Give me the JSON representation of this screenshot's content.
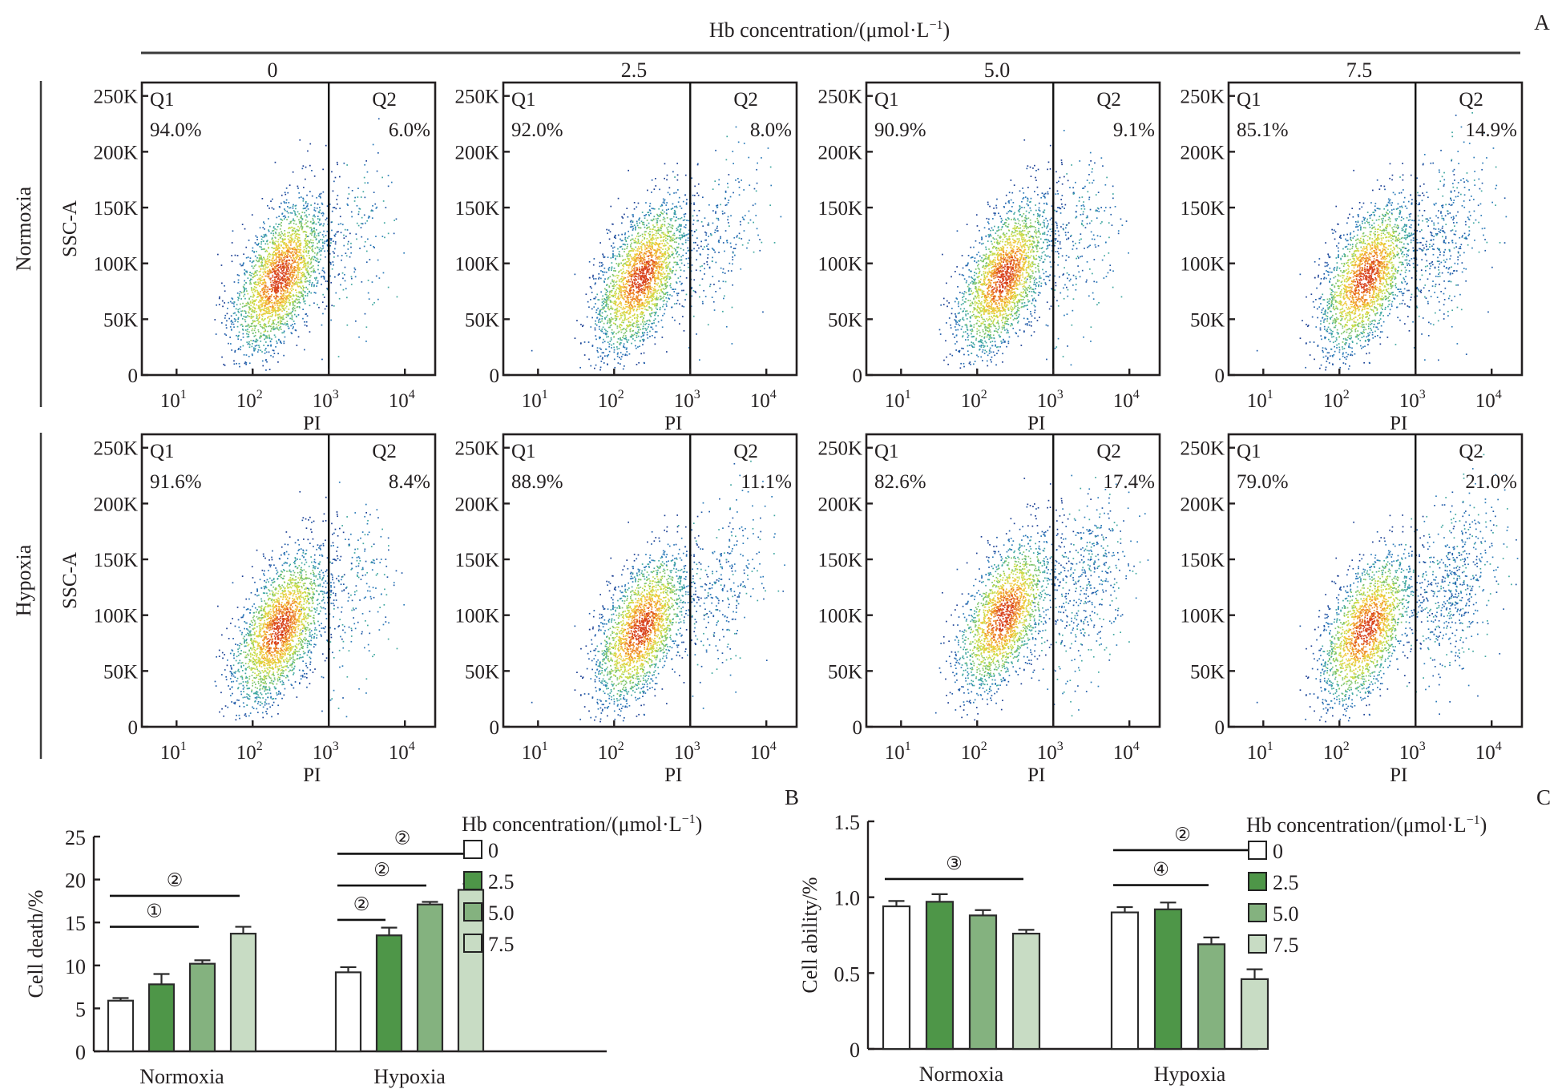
{
  "figure": {
    "panel_labels": {
      "A": "A",
      "B": "B",
      "C": "C"
    },
    "header": {
      "title": "Hb concentration/(μmol·L",
      "title_sup": "−1",
      "title_close": ")",
      "columns": [
        "0",
        "2.5",
        "5.0",
        "7.5"
      ]
    },
    "rows": [
      "Normoxia",
      "Hypoxia"
    ]
  },
  "chart_data": [
    {
      "type": "scatter",
      "title": "Flow cytometry PI vs SSC-A",
      "xlabel": "PI",
      "ylabel": "SSC-A",
      "x_scale": "log",
      "xlim": [
        3.5,
        25000
      ],
      "x_ticks": [
        {
          "value": 10,
          "base": "10",
          "exp": "1"
        },
        {
          "value": 100,
          "base": "10",
          "exp": "2"
        },
        {
          "value": 1000,
          "base": "10",
          "exp": "3"
        },
        {
          "value": 10000,
          "base": "10",
          "exp": "4"
        }
      ],
      "ylim": [
        0,
        262000
      ],
      "y_ticks": [
        {
          "value": 0,
          "label": "0"
        },
        {
          "value": 50000,
          "label": "50K"
        },
        {
          "value": 100000,
          "label": "100K"
        },
        {
          "value": 150000,
          "label": "150K"
        },
        {
          "value": 200000,
          "label": "200K"
        },
        {
          "value": 250000,
          "label": "250K"
        }
      ],
      "gate_x": 1000,
      "gate_labels": [
        "Q1",
        "Q2"
      ],
      "panels": [
        {
          "row": "Normoxia",
          "hb": "0",
          "q1": "94.0%",
          "q2": "6.0%",
          "q1_value": 94.0,
          "q2_value": 6.0
        },
        {
          "row": "Normoxia",
          "hb": "2.5",
          "q1": "92.0%",
          "q2": "8.0%",
          "q1_value": 92.0,
          "q2_value": 8.0
        },
        {
          "row": "Normoxia",
          "hb": "5.0",
          "q1": "90.9%",
          "q2": "9.1%",
          "q1_value": 90.9,
          "q2_value": 9.1
        },
        {
          "row": "Normoxia",
          "hb": "7.5",
          "q1": "85.1%",
          "q2": "14.9%",
          "q1_value": 85.1,
          "q2_value": 14.9
        },
        {
          "row": "Hypoxia",
          "hb": "0",
          "q1": "91.6%",
          "q2": "8.4%",
          "q1_value": 91.6,
          "q2_value": 8.4
        },
        {
          "row": "Hypoxia",
          "hb": "2.5",
          "q1": "88.9%",
          "q2": "11.1%",
          "q1_value": 88.9,
          "q2_value": 11.1
        },
        {
          "row": "Hypoxia",
          "hb": "5.0",
          "q1": "82.6%",
          "q2": "17.4%",
          "q1_value": 82.6,
          "q2_value": 17.4
        },
        {
          "row": "Hypoxia",
          "hb": "7.5",
          "q1": "79.0%",
          "q2": "21.0%",
          "q1_value": 79.0,
          "q2_value": 21.0
        }
      ]
    },
    {
      "type": "bar",
      "panel": "B",
      "title": "",
      "xlabel": "",
      "ylabel": "Cell death/%",
      "ylim": [
        0,
        25
      ],
      "y_ticks": [
        0,
        5,
        10,
        15,
        20,
        25
      ],
      "categories": [
        "Normoxia",
        "Hypoxia"
      ],
      "legend_title": "Hb concentration/(μmol·L",
      "legend_title_sup": "−1",
      "legend_title_close": ")",
      "legend_position": "right",
      "series": [
        {
          "name": "0",
          "color": "#ffffff",
          "values": [
            5.9,
            9.2
          ],
          "errors": [
            0.3,
            0.6
          ]
        },
        {
          "name": "2.5",
          "color": "#4e9648",
          "values": [
            7.8,
            13.5
          ],
          "errors": [
            1.2,
            0.9
          ]
        },
        {
          "name": "5.0",
          "color": "#84b27f",
          "values": [
            10.2,
            17.1
          ],
          "errors": [
            0.4,
            0.3
          ]
        },
        {
          "name": "7.5",
          "color": "#c8dcc4",
          "values": [
            13.7,
            18.8
          ],
          "errors": [
            0.8,
            0.7
          ]
        }
      ],
      "significance": [
        {
          "group": "Normoxia",
          "from": 0,
          "to": 2,
          "level": 14.5,
          "mark": "①"
        },
        {
          "group": "Normoxia",
          "from": 0,
          "to": 3,
          "level": 18.1,
          "mark": "②"
        },
        {
          "group": "Hypoxia",
          "from": 0,
          "to": 1,
          "level": 15.3,
          "mark": "②"
        },
        {
          "group": "Hypoxia",
          "from": 0,
          "to": 2,
          "level": 19.3,
          "mark": "②"
        },
        {
          "group": "Hypoxia",
          "from": 0,
          "to": 3,
          "level": 23.0,
          "mark": "②"
        }
      ]
    },
    {
      "type": "bar",
      "panel": "C",
      "title": "",
      "xlabel": "",
      "ylabel": "Cell ability/%",
      "ylim": [
        0,
        1.5
      ],
      "y_ticks": [
        0,
        0.5,
        1.0,
        1.5
      ],
      "y_tick_labels": [
        "0",
        "0.5",
        "1.0",
        "1.5"
      ],
      "categories": [
        "Normoxia",
        "Hypoxia"
      ],
      "legend_title": "Hb concentration/(μmol·L",
      "legend_title_sup": "−1",
      "legend_title_close": ")",
      "legend_position": "right",
      "series": [
        {
          "name": "0",
          "color": "#ffffff",
          "values": [
            0.94,
            0.9
          ],
          "errors": [
            0.035,
            0.035
          ]
        },
        {
          "name": "2.5",
          "color": "#4e9648",
          "values": [
            0.97,
            0.92
          ],
          "errors": [
            0.05,
            0.045
          ]
        },
        {
          "name": "5.0",
          "color": "#84b27f",
          "values": [
            0.88,
            0.69
          ],
          "errors": [
            0.035,
            0.045
          ]
        },
        {
          "name": "7.5",
          "color": "#c8dcc4",
          "values": [
            0.76,
            0.46
          ],
          "errors": [
            0.025,
            0.065
          ]
        }
      ],
      "significance": [
        {
          "group": "Normoxia",
          "from": 0,
          "to": 3,
          "level": 1.12,
          "mark": "③"
        },
        {
          "group": "Hypoxia",
          "from": 0,
          "to": 2,
          "level": 1.08,
          "mark": "④"
        },
        {
          "group": "Hypoxia",
          "from": 0,
          "to": 3,
          "level": 1.31,
          "mark": "②"
        }
      ]
    }
  ]
}
